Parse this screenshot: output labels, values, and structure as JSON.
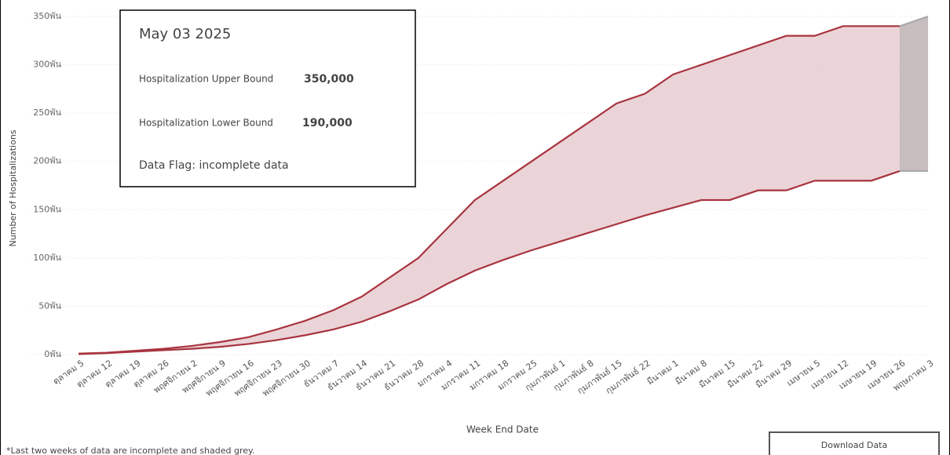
{
  "chart_data": {
    "type": "band",
    "y_label": "Number of Hospitalizations",
    "x_label": "Week End Date",
    "categories": [
      "ตุลาคม 5",
      "ตุลาคม 12",
      "ตุลาคม 19",
      "ตุลาคม 26",
      "พฤศจิกายน 2",
      "พฤศจิกายน 9",
      "พฤศจิกายน 16",
      "พฤศจิกายน 23",
      "พฤศจิกายน 30",
      "ธันวาคม 7",
      "ธันวาคม 14",
      "ธันวาคม 21",
      "ธันวาคม 28",
      "มกราคม 4",
      "มกราคม 11",
      "มกราคม 18",
      "มกราคม 25",
      "กุมภาพันธ์ 1",
      "กุมภาพันธ์ 8",
      "กุมภาพันธ์ 15",
      "กุมภาพันธ์ 22",
      "มีนาคม 1",
      "มีนาคม 8",
      "มีนาคม 15",
      "มีนาคม 22",
      "มีนาคม 29",
      "เมษายน 5",
      "เมษายน 12",
      "เมษายน 19",
      "เมษายน 26",
      "พฤษภาคม 3"
    ],
    "series": [
      {
        "name": "Hospitalization Upper Bound",
        "color": "#a8343f",
        "values": [
          1000,
          2000,
          4000,
          6000,
          9000,
          13000,
          18000,
          26000,
          35000,
          46000,
          60000,
          80000,
          100000,
          130000,
          160000,
          180000,
          200000,
          220000,
          240000,
          260000,
          270000,
          290000,
          300000,
          310000,
          320000,
          330000,
          330000,
          340000,
          340000,
          340000,
          350000
        ]
      },
      {
        "name": "Hospitalization Lower Bound",
        "color": "#a8343f",
        "values": [
          500,
          1500,
          3000,
          4500,
          6000,
          8000,
          11000,
          15000,
          20000,
          26000,
          34000,
          45000,
          57000,
          73000,
          87000,
          98000,
          108000,
          117000,
          126000,
          135000,
          144000,
          152000,
          160000,
          160000,
          170000,
          170000,
          180000,
          180000,
          180000,
          190000,
          190000
        ]
      }
    ],
    "band_color": "#e8cdd1",
    "incomplete_color": "#a9a9a9",
    "ylim": [
      0,
      350000
    ],
    "yticks": [
      {
        "value": 0,
        "label": "0พัน"
      },
      {
        "value": 50000,
        "label": "50พัน"
      },
      {
        "value": 100000,
        "label": "100พัน"
      },
      {
        "value": 150000,
        "label": "150พัน"
      },
      {
        "value": 200000,
        "label": "200พัน"
      },
      {
        "value": 250000,
        "label": "250พัน"
      },
      {
        "value": 300000,
        "label": "300พัน"
      },
      {
        "value": 350000,
        "label": "350พัน"
      }
    ],
    "grid": true
  },
  "tooltip": {
    "date": "May 03 2025",
    "rows": [
      {
        "label": "Hospitalization Upper Bound",
        "value": "350,000"
      },
      {
        "label": "Hospitalization Lower Bound",
        "value": "190,000"
      }
    ],
    "flag": "Data Flag: incomplete data"
  },
  "footnote": "*Last two weeks of data are incomplete and shaded grey.",
  "button": "Download Data"
}
